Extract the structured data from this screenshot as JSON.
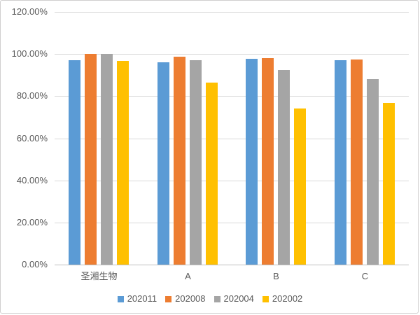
{
  "chart_data": {
    "type": "bar",
    "title": "",
    "categories": [
      "圣湘生物",
      "A",
      "B",
      "C"
    ],
    "series": [
      {
        "name": "202011",
        "color": "#5B9BD5",
        "values": [
          97.2,
          96.1,
          97.8,
          97.1
        ]
      },
      {
        "name": "202008",
        "color": "#ED7D31",
        "values": [
          100.0,
          98.8,
          98.0,
          97.3
        ]
      },
      {
        "name": "202004",
        "color": "#A5A5A5",
        "values": [
          100.0,
          97.1,
          92.4,
          88.2
        ]
      },
      {
        "name": "202002",
        "color": "#FFC000",
        "values": [
          96.6,
          86.4,
          74.0,
          76.7
        ]
      }
    ],
    "xlabel": "",
    "ylabel": "",
    "ylim": [
      0,
      120
    ],
    "ytick_step": 20,
    "ytick_labels": [
      "0.00%",
      "20.00%",
      "40.00%",
      "60.00%",
      "80.00%",
      "100.00%",
      "120.00%"
    ],
    "grid": true,
    "legend_position": "bottom"
  },
  "styles": {
    "background": "#FFFFFF",
    "border_color": "#D0CECE",
    "gridline_color": "#D9D9D9",
    "axisline_color": "#BFBFBF",
    "text_color": "#595959"
  }
}
